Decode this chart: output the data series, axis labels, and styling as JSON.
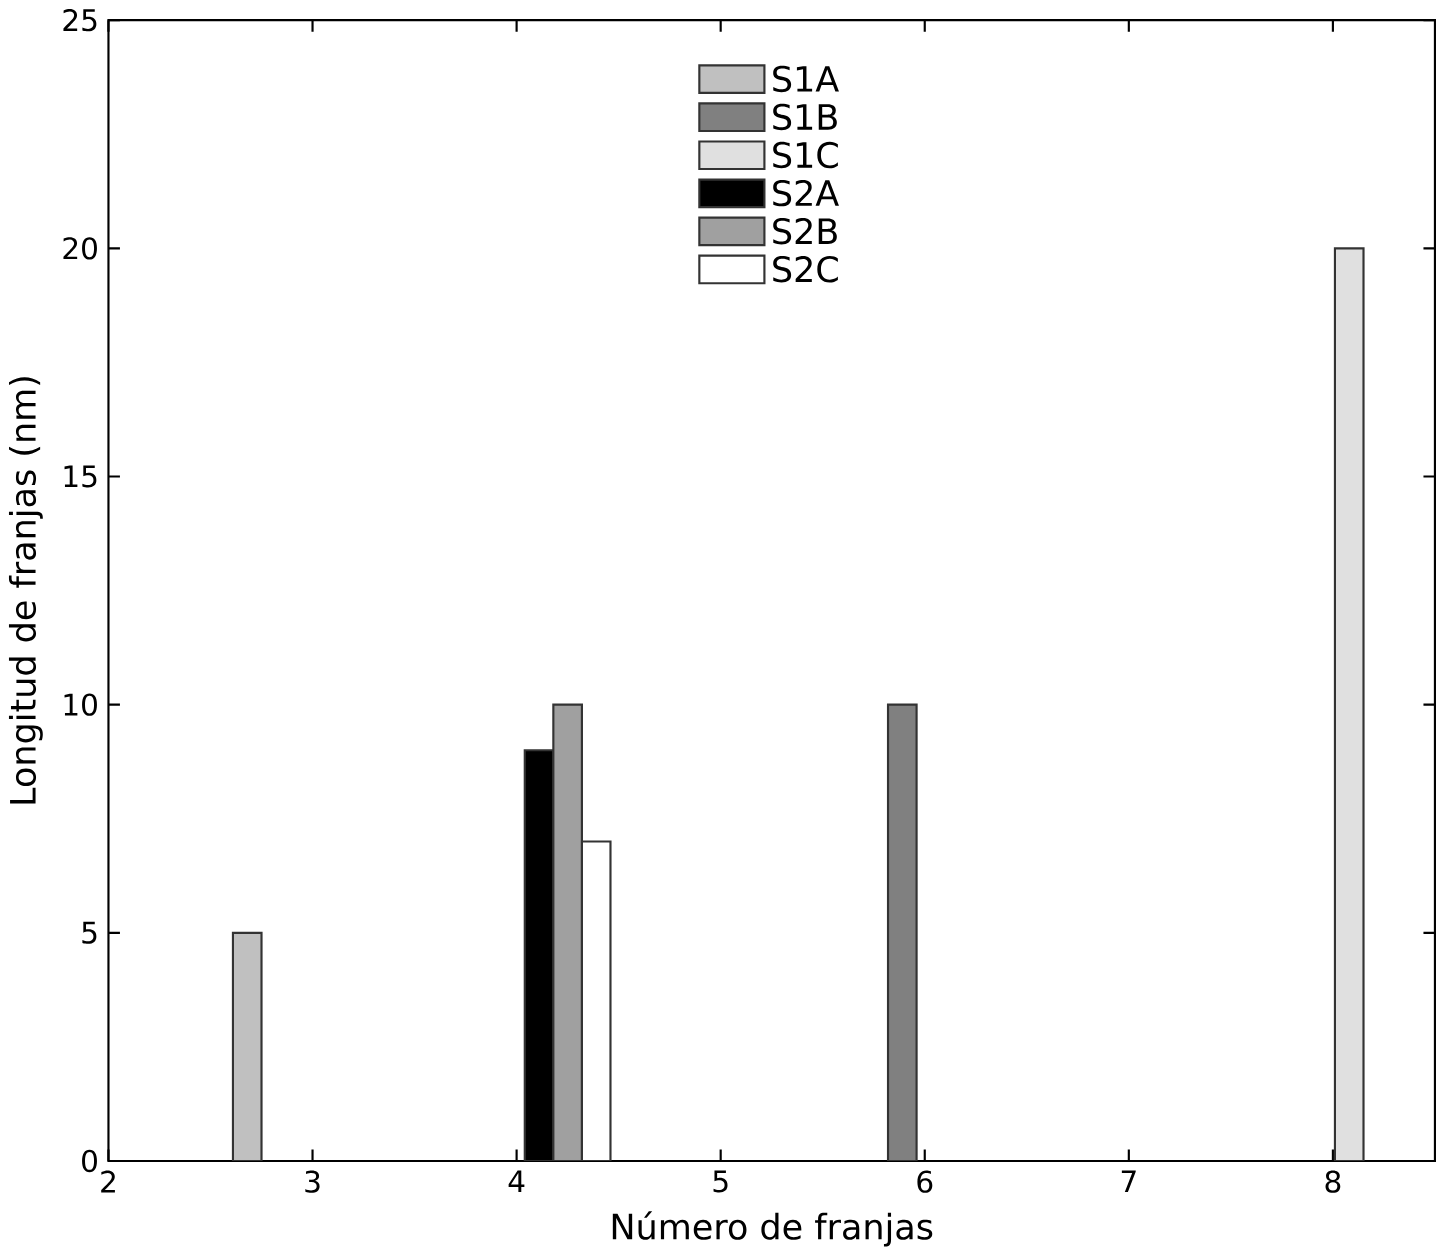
{
  "chart_data": {
    "type": "bar",
    "xlabel": "Número de franjas",
    "ylabel": "Longitud de franjas (nm)",
    "xlim": [
      2,
      8.5
    ],
    "xticks": [
      2,
      3,
      4,
      5,
      6,
      7,
      8
    ],
    "ylim": [
      0,
      25
    ],
    "yticks": [
      0,
      5,
      10,
      15,
      20,
      25
    ],
    "legend": "top",
    "grid": false,
    "series": [
      {
        "name": "S1A",
        "color": "#c0c0c0",
        "x": [
          2.68
        ],
        "values": [
          5
        ]
      },
      {
        "name": "S1B",
        "color": "#808080",
        "x": [
          5.89
        ],
        "values": [
          10
        ]
      },
      {
        "name": "S1C",
        "color": "#e0e0e0",
        "x": [
          8.08
        ],
        "values": [
          20
        ]
      },
      {
        "name": "S2A",
        "color": "#000000",
        "x": [
          4.11
        ],
        "values": [
          9
        ]
      },
      {
        "name": "S2B",
        "color": "#a0a0a0",
        "x": [
          4.25
        ],
        "values": [
          10
        ]
      },
      {
        "name": "S2C",
        "color": "#ffffff",
        "x": [
          4.39
        ],
        "values": [
          7
        ]
      }
    ]
  }
}
